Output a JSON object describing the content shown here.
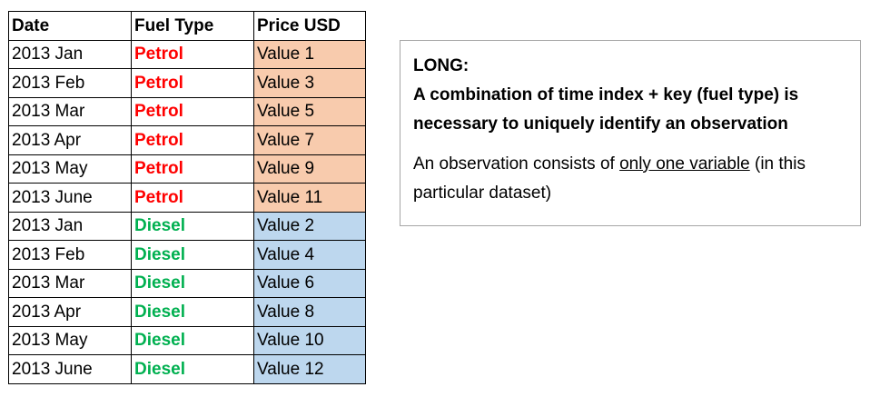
{
  "table": {
    "headers": [
      "Date",
      "Fuel Type",
      "Price USD"
    ],
    "rows": [
      {
        "date": "2013 Jan",
        "fuel": "Petrol",
        "price": "Value 1"
      },
      {
        "date": "2013 Feb",
        "fuel": "Petrol",
        "price": "Value 3"
      },
      {
        "date": "2013 Mar",
        "fuel": "Petrol",
        "price": "Value 5"
      },
      {
        "date": "2013 Apr",
        "fuel": "Petrol",
        "price": "Value 7"
      },
      {
        "date": "2013 May",
        "fuel": "Petrol",
        "price": "Value 9"
      },
      {
        "date": "2013 June",
        "fuel": "Petrol",
        "price": "Value 11"
      },
      {
        "date": "2013 Jan",
        "fuel": "Diesel",
        "price": "Value 2"
      },
      {
        "date": "2013 Feb",
        "fuel": "Diesel",
        "price": "Value 4"
      },
      {
        "date": "2013 Mar",
        "fuel": "Diesel",
        "price": "Value 6"
      },
      {
        "date": "2013 Apr",
        "fuel": "Diesel",
        "price": "Value 8"
      },
      {
        "date": "2013 May",
        "fuel": "Diesel",
        "price": "Value 10"
      },
      {
        "date": "2013 June",
        "fuel": "Diesel",
        "price": "Value 12"
      }
    ]
  },
  "colors": {
    "petrol_text": "#ff0000",
    "diesel_text": "#00b050",
    "petrol_fill": "#f8cbad",
    "diesel_fill": "#bdd7ee"
  },
  "note": {
    "heading": "LONG:",
    "emphasis": "A combination of time index + key (fuel type) is necessary to uniquely identify an observation",
    "text_before": "An observation consists of ",
    "text_underlined": "only one variable",
    "text_after": " (in this particular dataset)"
  }
}
